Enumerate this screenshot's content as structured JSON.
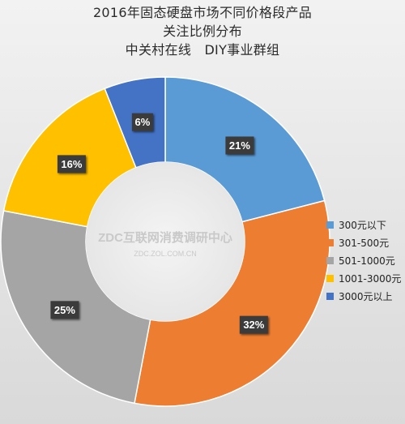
{
  "chart_data": {
    "type": "pie",
    "style": "donut",
    "title_lines": [
      "2016年固态硬盘市场不同价格段产品",
      "关注比例分布",
      "中关村在线　DIY事业群组"
    ],
    "categories": [
      "300元以下",
      "301-500元",
      "501-1000元",
      "1001-3000元",
      "3000元以上"
    ],
    "values": [
      21,
      32,
      25,
      16,
      6
    ],
    "labels": [
      "21%",
      "32%",
      "25%",
      "16%",
      "6%"
    ],
    "colors": [
      "#5b9bd5",
      "#ed7d31",
      "#a5a5a5",
      "#ffc000",
      "#4472c4"
    ],
    "legend_position": "right",
    "watermark": {
      "main": "ZDC互联网消费调研中心",
      "sub": "ZDC.ZOL.COM.CN"
    }
  }
}
